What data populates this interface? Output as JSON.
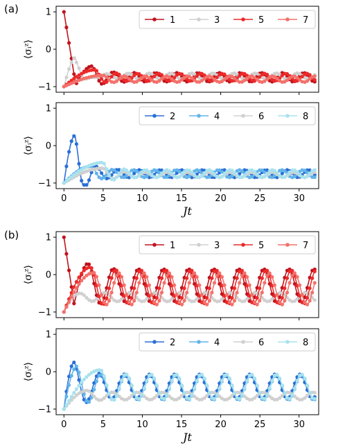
{
  "figure": {
    "panel_a_label": "(a)",
    "panel_b_label": "(b)",
    "xlabel": "Jt",
    "ylabel": "⟨σᵢᶻ⟩"
  },
  "chart_data": [
    {
      "type": "line",
      "panel": "(a) top",
      "xlabel": "",
      "ylabel": "⟨σᵢᶻ⟩",
      "xlim": [
        -1,
        32.5
      ],
      "ylim": [
        -1.15,
        1.15
      ],
      "xticks": [
        0,
        5,
        10,
        15,
        20,
        25,
        30
      ],
      "yticks": [
        -1,
        0,
        1
      ],
      "legend": "top-right",
      "grid": false,
      "series": [
        {
          "name": "1",
          "color": "#c0131d",
          "pattern": {
            "init": 1.0,
            "first_min": -0.95,
            "t_min": 1.5,
            "peak_t": 3.6,
            "peak_v": -0.45,
            "mean": -0.75,
            "amp": 0.12,
            "period": 2.7,
            "phase": 3.6
          }
        },
        {
          "name": "3",
          "color": "#d0d0d0",
          "pattern": {
            "init": -1.0,
            "peak_t": 1.6,
            "peak_v": -0.2,
            "mean": -0.72,
            "amp": 0.08,
            "period": 2.7,
            "phase": 2.8
          }
        },
        {
          "name": "5",
          "color": "#ec2a2a",
          "pattern": {
            "init": -1.0,
            "peak_t": 4.0,
            "peak_v": -0.55,
            "mean": -0.75,
            "amp": 0.1,
            "period": 2.7,
            "phase": 4.0
          }
        },
        {
          "name": "7",
          "color": "#f3716a",
          "pattern": {
            "init": -1.0,
            "peak_t": 5.0,
            "peak_v": -0.7,
            "mean": -0.8,
            "amp": 0.08,
            "period": 2.7,
            "phase": 5.0
          }
        }
      ]
    },
    {
      "type": "line",
      "panel": "(a) bottom",
      "xlabel": "Jt",
      "ylabel": "⟨σᵢᶻ⟩",
      "xlim": [
        -1,
        32.5
      ],
      "ylim": [
        -1.15,
        1.15
      ],
      "xticks": [
        0,
        5,
        10,
        15,
        20,
        25,
        30
      ],
      "yticks": [
        -1,
        0,
        1
      ],
      "legend": "top-right",
      "grid": false,
      "series": [
        {
          "name": "2",
          "color": "#2a6fd6",
          "pattern": {
            "init": -1.0,
            "peak_t": 1.4,
            "peak_v": 0.27,
            "mean": -0.75,
            "amp": 0.1,
            "period": 2.7,
            "phase": 4.2
          }
        },
        {
          "name": "4",
          "color": "#62b4ea",
          "pattern": {
            "init": -1.0,
            "peak_t": 3.5,
            "peak_v": -0.55,
            "mean": -0.75,
            "amp": 0.1,
            "period": 2.7,
            "phase": 3.5
          }
        },
        {
          "name": "6",
          "color": "#d0d0d0",
          "pattern": {
            "init": -1.0,
            "peak_t": 5.0,
            "peak_v": -0.6,
            "mean": -0.78,
            "amp": 0.07,
            "period": 2.7,
            "phase": 5.0
          }
        },
        {
          "name": "8",
          "color": "#a8e2ee",
          "pattern": {
            "init": -1.0,
            "peak_t": 5.0,
            "peak_v": -0.45,
            "mean": -0.75,
            "amp": 0.1,
            "period": 2.7,
            "phase": 5.0
          }
        }
      ]
    },
    {
      "type": "line",
      "panel": "(b) top",
      "xlabel": "",
      "ylabel": "⟨σᵢᶻ⟩",
      "xlim": [
        -1,
        32.5
      ],
      "ylim": [
        -1.15,
        1.15
      ],
      "xticks": [
        0,
        5,
        10,
        15,
        20,
        25,
        30
      ],
      "yticks": [
        -1,
        0,
        1
      ],
      "legend": "top-right",
      "grid": false,
      "series": [
        {
          "name": "1",
          "color": "#c0131d",
          "pattern": {
            "init": 1.0,
            "first_min": -0.8,
            "t_min": 1.3,
            "peak_t": 3.1,
            "peak_v": 0.3,
            "mean": -0.3,
            "amp": 0.45,
            "period": 3.2,
            "phase": 3.1
          }
        },
        {
          "name": "3",
          "color": "#d0d0d0",
          "pattern": {
            "init": -1.0,
            "peak_t": 2.0,
            "peak_v": -0.5,
            "mean": -0.6,
            "amp": 0.12,
            "period": 3.2,
            "phase": 2.0
          }
        },
        {
          "name": "5",
          "color": "#ec2a2a",
          "pattern": {
            "init": -1.0,
            "peak_t": 3.4,
            "peak_v": 0.2,
            "mean": -0.33,
            "amp": 0.45,
            "period": 3.2,
            "phase": 3.4
          }
        },
        {
          "name": "7",
          "color": "#f3716a",
          "pattern": {
            "init": -1.0,
            "peak_t": 3.8,
            "peak_v": 0.05,
            "mean": -0.38,
            "amp": 0.42,
            "period": 3.2,
            "phase": 3.8
          }
        }
      ]
    },
    {
      "type": "line",
      "panel": "(b) bottom",
      "xlabel": "Jt",
      "ylabel": "⟨σᵢᶻ⟩",
      "xlim": [
        -1,
        32.5
      ],
      "ylim": [
        -1.15,
        1.15
      ],
      "xticks": [
        0,
        5,
        10,
        15,
        20,
        25,
        30
      ],
      "yticks": [
        -1,
        0,
        1
      ],
      "legend": "top-right",
      "grid": false,
      "series": [
        {
          "name": "2",
          "color": "#2a6fd6",
          "pattern": {
            "init": -1.0,
            "peak_t": 1.3,
            "peak_v": 0.25,
            "mean": -0.4,
            "amp": 0.33,
            "period": 3.2,
            "phase": 4.5
          }
        },
        {
          "name": "4",
          "color": "#62b4ea",
          "pattern": {
            "init": -1.0,
            "peak_t": 1.7,
            "peak_v": 0.15,
            "mean": -0.42,
            "amp": 0.33,
            "period": 3.2,
            "phase": 4.7
          }
        },
        {
          "name": "6",
          "color": "#d0d0d0",
          "pattern": {
            "init": -1.0,
            "peak_t": 3.0,
            "peak_v": -0.5,
            "mean": -0.65,
            "amp": 0.1,
            "period": 3.2,
            "phase": 3.0
          }
        },
        {
          "name": "8",
          "color": "#a8e2ee",
          "pattern": {
            "init": -1.0,
            "peak_t": 4.7,
            "peak_v": 0.05,
            "mean": -0.4,
            "amp": 0.33,
            "period": 3.2,
            "phase": 4.7
          }
        }
      ]
    }
  ]
}
